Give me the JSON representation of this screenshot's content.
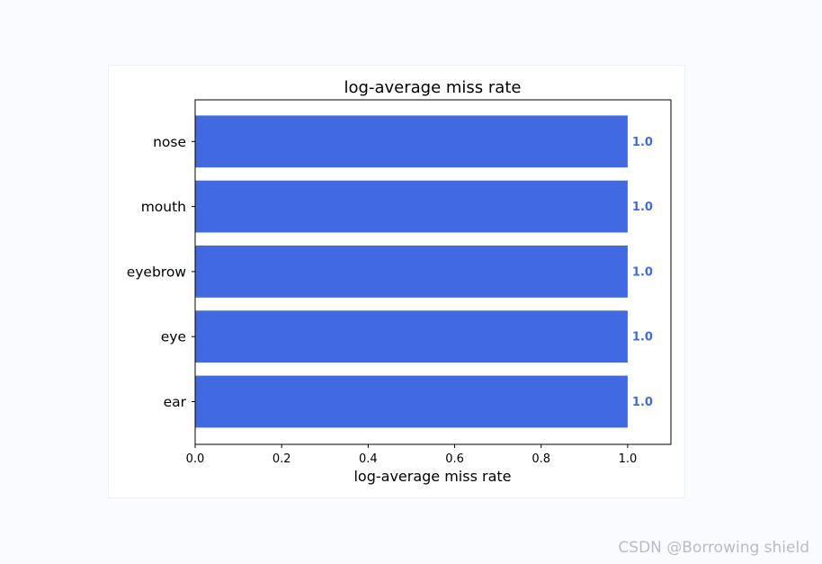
{
  "colors": {
    "bar": "#4169e1",
    "bar_label": "#4169e1",
    "axis": "#000000",
    "watermark": "#b9bcc4"
  },
  "chart_data": {
    "type": "bar",
    "orientation": "horizontal",
    "title": "log-average miss rate",
    "xlabel": "log-average miss rate",
    "ylabel": "",
    "categories": [
      "ear",
      "eye",
      "eyebrow",
      "mouth",
      "nose"
    ],
    "values": [
      1.0,
      1.0,
      1.0,
      1.0,
      1.0
    ],
    "value_labels": [
      "1.0",
      "1.0",
      "1.0",
      "1.0",
      "1.0"
    ],
    "xlim": [
      0.0,
      1.1
    ],
    "xticks": [
      "0.0",
      "0.2",
      "0.4",
      "0.6",
      "0.8",
      "1.0"
    ],
    "xtick_values": [
      0.0,
      0.2,
      0.4,
      0.6,
      0.8,
      1.0
    ],
    "grid": false,
    "legend": "none"
  },
  "watermark": {
    "text": "CSDN @Borrowing shield"
  }
}
